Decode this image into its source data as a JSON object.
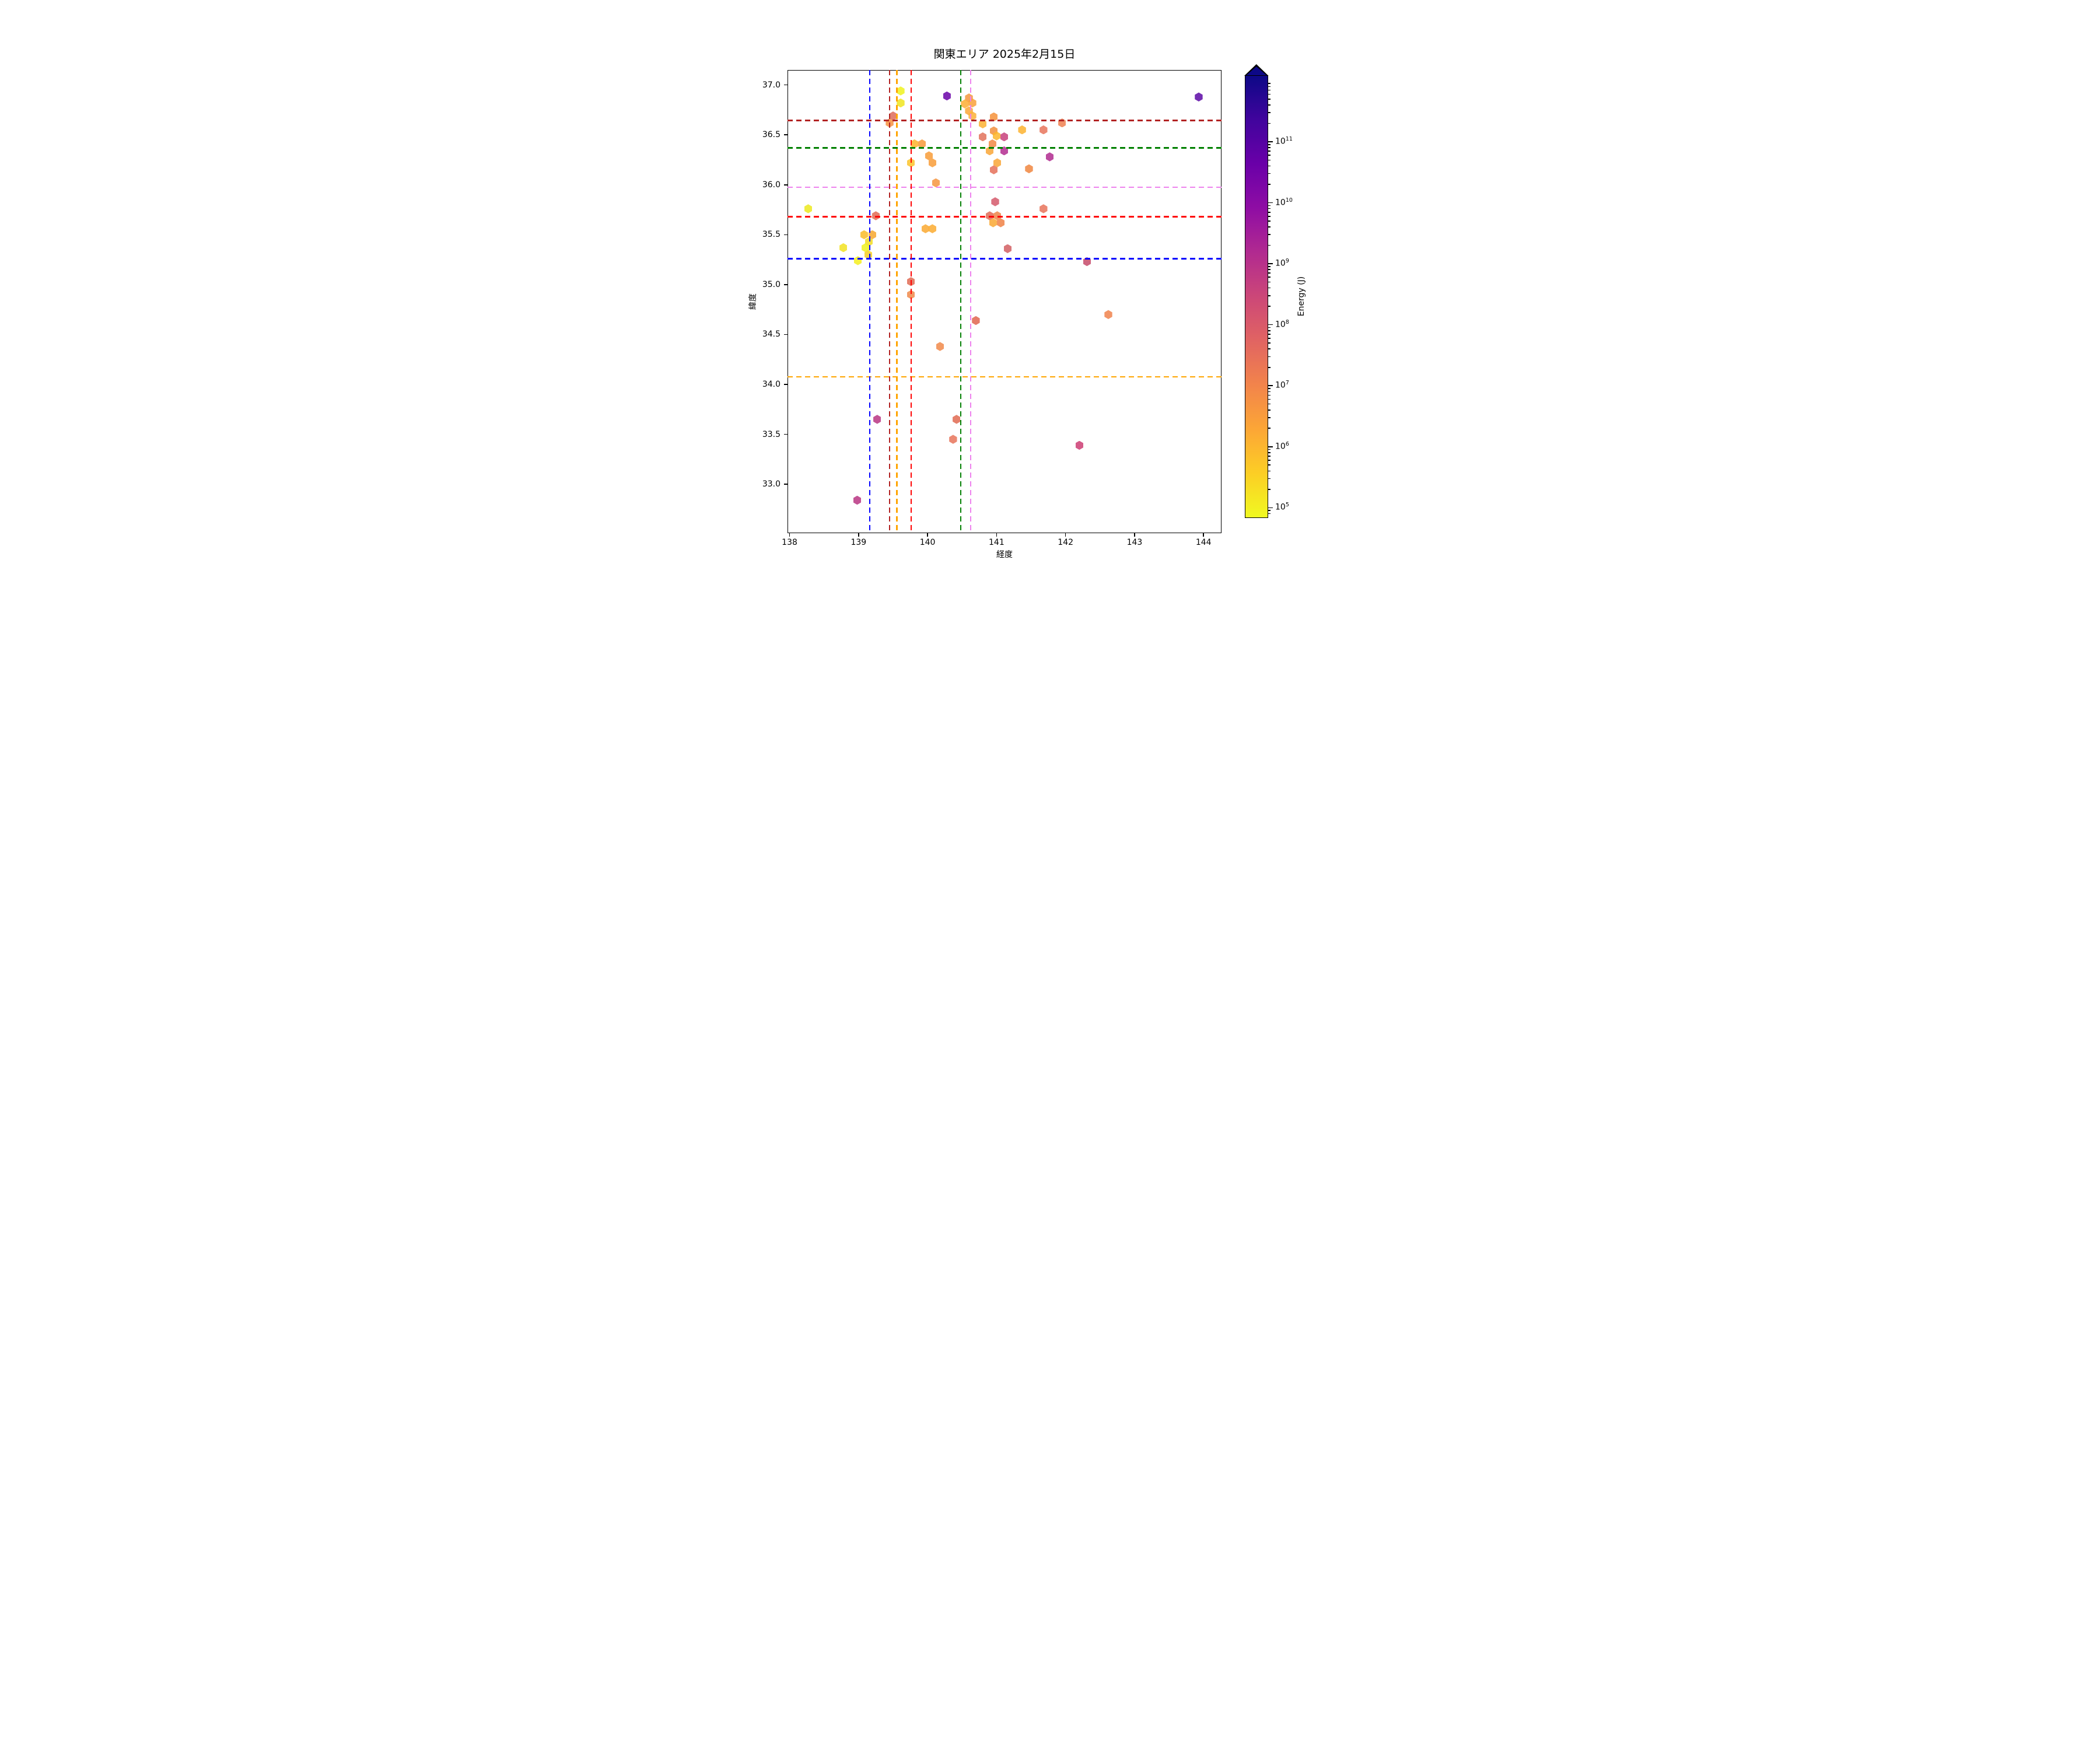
{
  "title": "関東エリア 2025年2月15日",
  "chart_data": {
    "type": "scatter",
    "marker": "hexagon",
    "title": "関東エリア 2025年2月15日",
    "xlabel": "経度",
    "ylabel": "緯度",
    "xlim": [
      137.97,
      144.26
    ],
    "ylim": [
      32.51,
      37.15
    ],
    "x_ticks": [
      138,
      139,
      140,
      141,
      142,
      143,
      144
    ],
    "y_ticks": [
      37.0,
      36.5,
      36.0,
      35.5,
      35.0,
      34.5,
      34.0,
      33.5,
      33.0
    ],
    "grid": false,
    "legend": "none",
    "colorbar": {
      "label": "Energy (J)",
      "scale": "log",
      "extend": "max",
      "tick_exponents": [
        11,
        10,
        9,
        8,
        7,
        6,
        5
      ],
      "log_min": 4.85,
      "log_max": 12.09,
      "arrow_color": "#0d0887",
      "gradient_stops_bottom_to_top": [
        "#f0f921",
        "#fcce25",
        "#fca636",
        "#f2844b",
        "#e16462",
        "#cc4778",
        "#b12a90",
        "#8f0da4",
        "#6a00a8",
        "#41049d",
        "#0d0887"
      ]
    },
    "reference_lines": {
      "vertical": [
        {
          "lon": 139.16,
          "color": "#0000ff"
        },
        {
          "lon": 139.45,
          "color": "#b22222"
        },
        {
          "lon": 139.555,
          "color": "#ffa500"
        },
        {
          "lon": 139.765,
          "color": "#ff0000"
        },
        {
          "lon": 140.48,
          "color": "#008000"
        },
        {
          "lon": 140.625,
          "color": "#ee82ee"
        }
      ],
      "horizontal": [
        {
          "lat": 36.645,
          "color": "#b22222"
        },
        {
          "lat": 36.37,
          "color": "#008000"
        },
        {
          "lat": 35.975,
          "color": "#ee82ee"
        },
        {
          "lat": 35.68,
          "color": "#ff0000"
        },
        {
          "lat": 35.26,
          "color": "#0000ff"
        },
        {
          "lat": 34.075,
          "color": "#ffa500"
        }
      ]
    },
    "points": [
      {
        "lon": 139.61,
        "lat": 36.94,
        "color": "#eff21e",
        "log10_energy_est": 5.0
      },
      {
        "lon": 139.61,
        "lat": 36.82,
        "color": "#f0e51f",
        "log10_energy_est": 5.3
      },
      {
        "lon": 139.5,
        "lat": 36.69,
        "color": "#dd6b5a",
        "log10_energy_est": 7.7
      },
      {
        "lon": 139.45,
        "lat": 36.62,
        "color": "#f69140",
        "log10_energy_est": 6.9
      },
      {
        "lon": 140.28,
        "lat": 36.89,
        "color": "#6a02a8",
        "log10_energy_est": 10.6
      },
      {
        "lon": 143.93,
        "lat": 36.88,
        "color": "#5c08a6",
        "log10_energy_est": 10.9
      },
      {
        "lon": 140.6,
        "lat": 36.87,
        "color": "#f5973d",
        "log10_energy_est": 6.6
      },
      {
        "lon": 140.65,
        "lat": 36.82,
        "color": "#f9a13a",
        "log10_energy_est": 6.5
      },
      {
        "lon": 140.54,
        "lat": 36.81,
        "color": "#fbae34",
        "log10_energy_est": 6.3
      },
      {
        "lon": 140.6,
        "lat": 36.74,
        "color": "#faa737",
        "log10_energy_est": 6.4
      },
      {
        "lon": 140.65,
        "lat": 36.69,
        "color": "#fbb137",
        "log10_energy_est": 6.2
      },
      {
        "lon": 140.96,
        "lat": 36.68,
        "color": "#f69239",
        "log10_energy_est": 6.7
      },
      {
        "lon": 140.8,
        "lat": 36.61,
        "color": "#fcb232",
        "log10_energy_est": 6.2
      },
      {
        "lon": 140.96,
        "lat": 36.54,
        "color": "#f18f3e",
        "log10_energy_est": 6.8
      },
      {
        "lon": 140.8,
        "lat": 36.48,
        "color": "#e2725b",
        "log10_energy_est": 7.5
      },
      {
        "lon": 141.0,
        "lat": 36.49,
        "color": "#fcb62d",
        "log10_energy_est": 6.1
      },
      {
        "lon": 141.11,
        "lat": 36.48,
        "color": "#c8417b",
        "log10_energy_est": 8.7
      },
      {
        "lon": 140.94,
        "lat": 36.41,
        "color": "#f28a44",
        "log10_energy_est": 6.9
      },
      {
        "lon": 141.37,
        "lat": 36.55,
        "color": "#fdb32f",
        "log10_energy_est": 6.2
      },
      {
        "lon": 141.68,
        "lat": 36.55,
        "color": "#e8745c",
        "log10_energy_est": 7.4
      },
      {
        "lon": 141.95,
        "lat": 36.62,
        "color": "#ee8050",
        "log10_energy_est": 7.2
      },
      {
        "lon": 140.9,
        "lat": 36.34,
        "color": "#f9a636",
        "log10_energy_est": 6.4
      },
      {
        "lon": 141.11,
        "lat": 36.34,
        "color": "#b32d90",
        "log10_energy_est": 9.2
      },
      {
        "lon": 141.77,
        "lat": 36.28,
        "color": "#b02a8f",
        "log10_energy_est": 9.3
      },
      {
        "lon": 141.01,
        "lat": 36.22,
        "color": "#f9a636",
        "log10_energy_est": 6.4
      },
      {
        "lon": 140.96,
        "lat": 36.15,
        "color": "#e57059",
        "log10_energy_est": 7.5
      },
      {
        "lon": 141.47,
        "lat": 36.16,
        "color": "#f0863f",
        "log10_energy_est": 7.0
      },
      {
        "lon": 139.81,
        "lat": 36.41,
        "color": "#fbb42c",
        "log10_energy_est": 6.2
      },
      {
        "lon": 139.92,
        "lat": 36.41,
        "color": "#f79939",
        "log10_energy_est": 6.6
      },
      {
        "lon": 139.76,
        "lat": 36.22,
        "color": "#fcc32a",
        "log10_energy_est": 5.9
      },
      {
        "lon": 140.02,
        "lat": 36.29,
        "color": "#f89c38",
        "log10_energy_est": 6.6
      },
      {
        "lon": 140.07,
        "lat": 36.22,
        "color": "#f89c38",
        "log10_energy_est": 6.6
      },
      {
        "lon": 140.12,
        "lat": 36.02,
        "color": "#f69540",
        "log10_energy_est": 6.7
      },
      {
        "lon": 140.98,
        "lat": 35.83,
        "color": "#d5596b",
        "log10_energy_est": 8.1
      },
      {
        "lon": 141.68,
        "lat": 35.76,
        "color": "#e8735a",
        "log10_energy_est": 7.4
      },
      {
        "lon": 140.9,
        "lat": 35.69,
        "color": "#e16b56",
        "log10_energy_est": 7.7
      },
      {
        "lon": 141.01,
        "lat": 35.69,
        "color": "#ef8549",
        "log10_energy_est": 7.1
      },
      {
        "lon": 140.95,
        "lat": 35.62,
        "color": "#f9a833",
        "log10_energy_est": 6.4
      },
      {
        "lon": 141.06,
        "lat": 35.62,
        "color": "#f08145",
        "log10_energy_est": 7.1
      },
      {
        "lon": 141.16,
        "lat": 35.36,
        "color": "#d25f63",
        "log10_energy_est": 7.9
      },
      {
        "lon": 142.31,
        "lat": 35.23,
        "color": "#c64a6a",
        "log10_energy_est": 8.5
      },
      {
        "lon": 138.27,
        "lat": 35.76,
        "color": "#ece91f",
        "log10_energy_est": 5.2
      },
      {
        "lon": 139.25,
        "lat": 35.69,
        "color": "#e06a54",
        "log10_energy_est": 7.7
      },
      {
        "lon": 139.97,
        "lat": 35.56,
        "color": "#faa931",
        "log10_energy_est": 6.3
      },
      {
        "lon": 140.07,
        "lat": 35.56,
        "color": "#fbab30",
        "log10_energy_est": 6.3
      },
      {
        "lon": 139.08,
        "lat": 35.5,
        "color": "#f9bc28",
        "log10_energy_est": 5.9
      },
      {
        "lon": 139.2,
        "lat": 35.5,
        "color": "#f7a72e",
        "log10_energy_est": 6.4
      },
      {
        "lon": 139.15,
        "lat": 35.43,
        "color": "#f2dc22",
        "log10_energy_est": 5.5
      },
      {
        "lon": 138.78,
        "lat": 35.37,
        "color": "#f2e222",
        "log10_energy_est": 5.4
      },
      {
        "lon": 139.1,
        "lat": 35.37,
        "color": "#eef121",
        "log10_energy_est": 5.0
      },
      {
        "lon": 139.14,
        "lat": 35.3,
        "color": "#f4cf25",
        "log10_energy_est": 5.7
      },
      {
        "lon": 138.99,
        "lat": 35.24,
        "color": "#f4ef20",
        "log10_energy_est": 5.1
      },
      {
        "lon": 139.76,
        "lat": 35.03,
        "color": "#e06a54",
        "log10_energy_est": 7.7
      },
      {
        "lon": 139.76,
        "lat": 34.9,
        "color": "#f08a4b",
        "log10_energy_est": 7.0
      },
      {
        "lon": 140.7,
        "lat": 34.64,
        "color": "#e0654f",
        "log10_energy_est": 7.8
      },
      {
        "lon": 140.18,
        "lat": 34.38,
        "color": "#f18a4a",
        "log10_energy_est": 7.0
      },
      {
        "lon": 142.62,
        "lat": 34.7,
        "color": "#f0824c",
        "log10_energy_est": 7.1
      },
      {
        "lon": 139.27,
        "lat": 33.65,
        "color": "#b93583",
        "log10_energy_est": 9.0
      },
      {
        "lon": 138.98,
        "lat": 32.84,
        "color": "#b93583",
        "log10_energy_est": 9.0
      },
      {
        "lon": 140.42,
        "lat": 33.65,
        "color": "#e06a51",
        "log10_energy_est": 7.7
      },
      {
        "lon": 140.37,
        "lat": 33.45,
        "color": "#e8745a",
        "log10_energy_est": 7.4
      },
      {
        "lon": 142.2,
        "lat": 33.39,
        "color": "#cc3d73",
        "log10_energy_est": 8.6
      }
    ]
  }
}
